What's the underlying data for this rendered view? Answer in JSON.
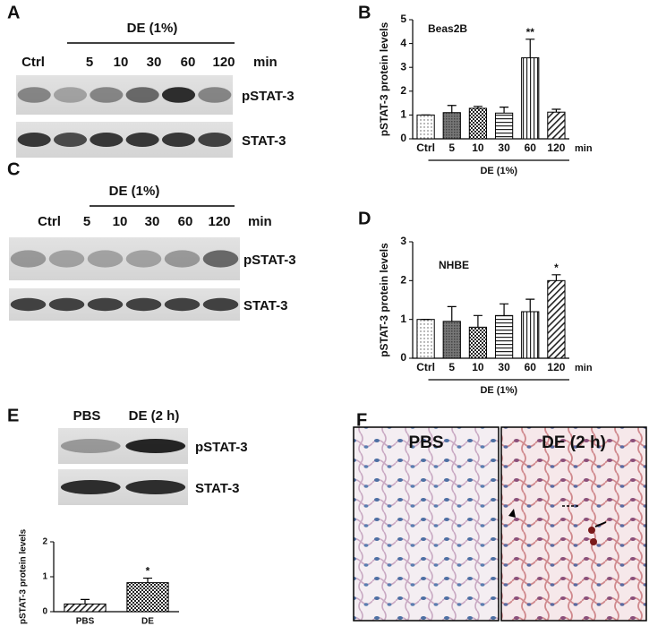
{
  "panel_labels": [
    "A",
    "B",
    "C",
    "D",
    "E",
    "F"
  ],
  "blots": [
    {
      "header": "DE (1%)",
      "lanes": [
        "Ctrl",
        "5",
        "10",
        "30",
        "60",
        "120"
      ],
      "unit": "min",
      "bands": [
        "pSTAT-3",
        "STAT-3"
      ]
    },
    {
      "header": "DE (1%)",
      "lanes": [
        "Ctrl",
        "5",
        "10",
        "30",
        "60",
        "120"
      ],
      "unit": "min",
      "bands": [
        "pSTAT-3",
        "STAT-3"
      ]
    },
    {
      "lanes": [
        "PBS",
        "DE (2 h)"
      ],
      "bands": [
        "pSTAT-3",
        "STAT-3"
      ]
    }
  ],
  "histology": {
    "panels": [
      "PBS",
      "DE (2 h)"
    ]
  },
  "chart_data": [
    {
      "type": "bar",
      "ylabel": "pSTAT-3 protein levels",
      "annotation": "Beas2B",
      "categories": [
        "Ctrl",
        "5",
        "10",
        "30",
        "60",
        "120"
      ],
      "values": [
        1,
        1.1,
        1.28,
        1.08,
        3.4,
        1.12
      ],
      "errors": [
        0,
        0.3,
        0.08,
        0.25,
        0.78,
        0.12
      ],
      "significance": [
        null,
        null,
        null,
        null,
        "**",
        null
      ],
      "xunit": "min",
      "group_label": "DE (1%)",
      "ylim": [
        0,
        5
      ],
      "yticks": [
        0,
        1,
        2,
        3,
        4,
        5
      ]
    },
    {
      "type": "bar",
      "ylabel": "pSTAT-3 protein levels",
      "annotation": "NHBE",
      "categories": [
        "Ctrl",
        "5",
        "10",
        "30",
        "60",
        "120"
      ],
      "values": [
        1,
        0.95,
        0.8,
        1.1,
        1.2,
        2.0
      ],
      "errors": [
        0,
        0.38,
        0.3,
        0.3,
        0.32,
        0.15
      ],
      "significance": [
        null,
        null,
        null,
        null,
        null,
        "*"
      ],
      "xunit": "min",
      "group_label": "DE (1%)",
      "ylim": [
        0,
        3
      ],
      "yticks": [
        0,
        1,
        2,
        3
      ]
    },
    {
      "type": "bar",
      "ylabel": "pSTAT-3 protein levels",
      "categories": [
        "PBS",
        "DE"
      ],
      "values": [
        0.22,
        0.83
      ],
      "errors": [
        0.13,
        0.13
      ],
      "significance": [
        null,
        "*"
      ],
      "ylim": [
        0,
        2
      ],
      "yticks": [
        0,
        1,
        2
      ]
    }
  ]
}
